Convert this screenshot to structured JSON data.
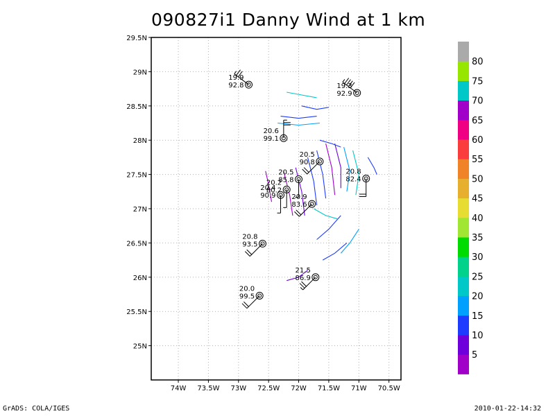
{
  "footer": {
    "left": "GrADS: COLA/IGES",
    "right": "2010-01-22-14:32"
  },
  "chart_data": {
    "type": "scatter",
    "title": "090827i1 Danny Wind at 1 km",
    "xlabel": "",
    "ylabel": "",
    "xlim": [
      -74.45,
      -70.3
    ],
    "ylim": [
      24.5,
      29.5
    ],
    "x_ticks": [
      "74W",
      "73.5W",
      "73W",
      "72.5W",
      "72W",
      "71.5W",
      "71W",
      "70.5W"
    ],
    "x_tick_values": [
      -74,
      -73.5,
      -73,
      -72.5,
      -72,
      -71.5,
      -71,
      -70.5
    ],
    "y_ticks": [
      "25N",
      "25.5N",
      "26N",
      "26.5N",
      "27N",
      "27.5N",
      "28N",
      "28.5N",
      "29N",
      "29.5N"
    ],
    "y_tick_values": [
      25,
      25.5,
      26,
      26.5,
      27,
      27.5,
      28,
      28.5,
      29,
      29.5
    ],
    "grid": true,
    "stations": [
      {
        "lon": -72.83,
        "lat": 28.81,
        "top": "19.9",
        "bottom": "92.8",
        "barb": "NW",
        "speed": 15
      },
      {
        "lon": -71.03,
        "lat": 28.69,
        "top": "19.3",
        "bottom": "92.9",
        "barb": "NW",
        "speed": 25
      },
      {
        "lon": -72.25,
        "lat": 28.03,
        "top": "20.6",
        "bottom": "99.1",
        "barb": "N",
        "speed": 15
      },
      {
        "lon": -71.65,
        "lat": 27.69,
        "top": "20.5",
        "bottom": "90.8",
        "barb": "SW",
        "speed": 10
      },
      {
        "lon": -70.88,
        "lat": 27.44,
        "top": "20.8",
        "bottom": "82.4",
        "barb": "S",
        "speed": 10
      },
      {
        "lon": -72.0,
        "lat": 27.43,
        "top": "20.5",
        "bottom": "85.8",
        "barb": "S",
        "speed": 5
      },
      {
        "lon": -72.2,
        "lat": 27.28,
        "top": "20.2",
        "bottom": "80.2",
        "barb": "S",
        "speed": 5
      },
      {
        "lon": -72.3,
        "lat": 27.2,
        "top": "20.4",
        "bottom": "90.9",
        "barb": "S",
        "speed": 5
      },
      {
        "lon": -71.78,
        "lat": 27.07,
        "top": "20.9",
        "bottom": "83.6",
        "barb": "SW",
        "speed": 10
      },
      {
        "lon": -72.6,
        "lat": 26.49,
        "top": "20.8",
        "bottom": "93.5",
        "barb": "SW",
        "speed": 10
      },
      {
        "lon": -71.72,
        "lat": 26.0,
        "top": "21.5",
        "bottom": "86.9",
        "barb": "SW",
        "speed": 15
      },
      {
        "lon": -72.65,
        "lat": 25.73,
        "top": "20.0",
        "bottom": "99.5",
        "barb": "SW",
        "speed": 10
      }
    ],
    "colorbar": {
      "labels": [
        "5",
        "10",
        "15",
        "20",
        "25",
        "30",
        "35",
        "40",
        "45",
        "50",
        "55",
        "60",
        "65",
        "70",
        "75",
        "80"
      ],
      "colors": [
        "#a000c8",
        "#6e00dc",
        "#1e3cff",
        "#00a0ff",
        "#00c8c8",
        "#00d28c",
        "#00dc00",
        "#a0e632",
        "#e6dc32",
        "#e6af2d",
        "#f08228",
        "#fa3c3c",
        "#f00082",
        "#a000c8",
        "#00c8c8",
        "#96e600",
        "#aaaaaa"
      ]
    }
  }
}
